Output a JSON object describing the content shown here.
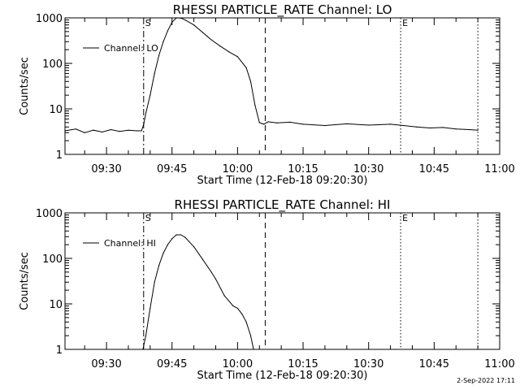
{
  "footer": {
    "timestamp": "2-Sep-2022 17:11"
  },
  "chart_data": [
    {
      "type": "line",
      "title": "RHESSI PARTICLE_RATE Channel: LO",
      "xlabel": "Start Time (12-Feb-18 09:20:30)",
      "ylabel": "Counts/sec",
      "y_scale": "log",
      "xlim": [
        "09:20:30",
        "11:00:00"
      ],
      "ylim": [
        1,
        1000
      ],
      "xticks": [
        "09:30",
        "09:45",
        "10:00",
        "10:15",
        "10:30",
        "10:45",
        "11:00"
      ],
      "yticks": [
        "1",
        "10",
        "100",
        "1000"
      ],
      "legend": {
        "placement": "top-left"
      },
      "series": [
        {
          "name": "Channel: LO",
          "x": [
            "09:20:30",
            "09:23:00",
            "09:25:00",
            "09:27:00",
            "09:29:00",
            "09:31:00",
            "09:33:00",
            "09:35:00",
            "09:37:00",
            "09:38:00",
            "09:38:30",
            "09:39:00",
            "09:40:00",
            "09:41:00",
            "09:42:00",
            "09:43:00",
            "09:44:00",
            "09:45:00",
            "09:46:00",
            "09:47:00",
            "09:48:00",
            "09:50:00",
            "09:52:00",
            "09:54:00",
            "09:56:00",
            "09:58:00",
            "10:00:00",
            "10:02:00",
            "10:03:00",
            "10:04:00",
            "10:05:00",
            "10:06:00",
            "10:07:00",
            "10:09:00",
            "10:12:00",
            "10:15:00",
            "10:20:00",
            "10:25:00",
            "10:30:00",
            "10:35:00",
            "10:38:00",
            "10:41:00",
            "10:44:00",
            "10:47:00",
            "10:50:00",
            "10:53:00",
            "10:55:00"
          ],
          "y": [
            3.3,
            3.6,
            3.0,
            3.4,
            3.1,
            3.5,
            3.2,
            3.4,
            3.3,
            3.3,
            4.5,
            8,
            20,
            60,
            150,
            300,
            520,
            800,
            1000,
            990,
            900,
            700,
            480,
            330,
            240,
            180,
            140,
            80,
            40,
            12,
            5.0,
            4.6,
            5.2,
            4.9,
            5.1,
            4.6,
            4.3,
            4.7,
            4.4,
            4.6,
            4.3,
            4.0,
            3.8,
            3.9,
            3.6,
            3.5,
            3.4
          ]
        }
      ],
      "markers": [
        {
          "label": "S",
          "time": "09:38:30",
          "style": "dash-dot"
        },
        {
          "label": "",
          "time": "10:06:20",
          "style": "dashed"
        },
        {
          "label": "E",
          "time": "10:37:20",
          "style": "dotted"
        },
        {
          "label": "",
          "time": "10:55:00",
          "style": "dotted"
        }
      ]
    },
    {
      "type": "line",
      "title": "RHESSI PARTICLE_RATE Channel: HI",
      "xlabel": "Start Time (12-Feb-18 09:20:30)",
      "ylabel": "Counts/sec",
      "y_scale": "log",
      "xlim": [
        "09:20:30",
        "11:00:00"
      ],
      "ylim": [
        1,
        1000
      ],
      "xticks": [
        "09:30",
        "09:45",
        "10:00",
        "10:15",
        "10:30",
        "10:45",
        "11:00"
      ],
      "yticks": [
        "1",
        "10",
        "100",
        "1000"
      ],
      "legend": {
        "placement": "top-left"
      },
      "series": [
        {
          "name": "Channel: HI",
          "x": [
            "09:38:20",
            "09:39:00",
            "09:40:00",
            "09:41:00",
            "09:42:00",
            "09:43:00",
            "09:44:00",
            "09:45:00",
            "09:46:00",
            "09:47:00",
            "09:48:00",
            "09:50:00",
            "09:52:00",
            "09:54:00",
            "09:55:00",
            "09:57:00",
            "09:59:00",
            "10:00:00",
            "10:01:00",
            "10:02:00",
            "10:03:00",
            "10:03:40"
          ],
          "y": [
            1,
            2,
            8,
            30,
            70,
            130,
            200,
            270,
            330,
            330,
            290,
            180,
            95,
            50,
            35,
            15,
            9,
            8,
            6,
            4,
            2,
            1
          ]
        }
      ],
      "markers": [
        {
          "label": "S",
          "time": "09:38:30",
          "style": "dash-dot"
        },
        {
          "label": "",
          "time": "10:06:20",
          "style": "dashed"
        },
        {
          "label": "E",
          "time": "10:37:20",
          "style": "dotted"
        },
        {
          "label": "",
          "time": "10:55:00",
          "style": "dotted"
        }
      ]
    }
  ]
}
